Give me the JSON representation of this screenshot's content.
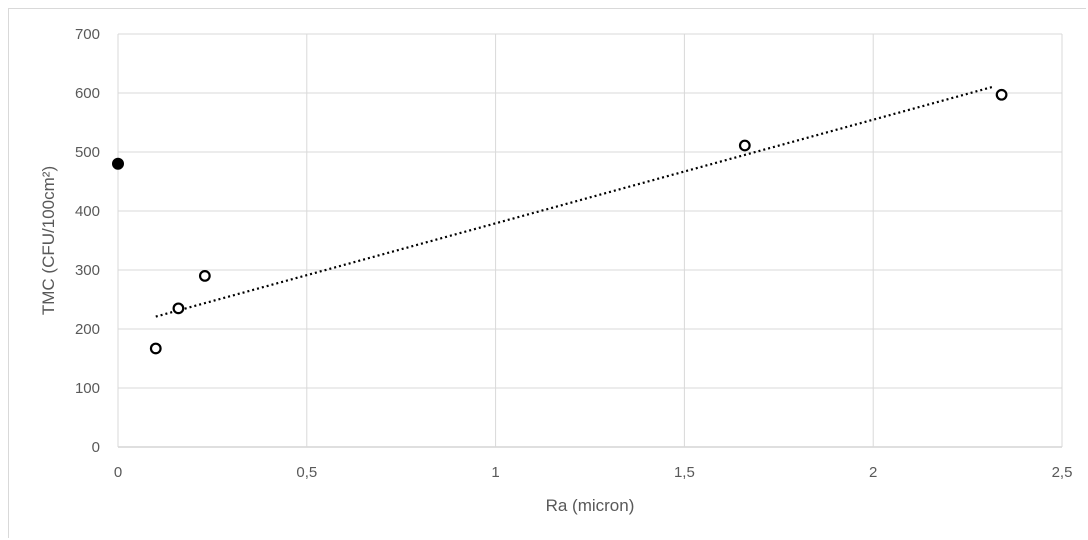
{
  "chart_data": {
    "type": "scatter",
    "xlabel": "Ra (micron)",
    "ylabel": "TMC (CFU/100cm²)",
    "xlim": [
      0,
      2.5
    ],
    "ylim": [
      0,
      700
    ],
    "x_ticks": [
      "0",
      "0,5",
      "1",
      "1,5",
      "2",
      "2,5"
    ],
    "x_tick_values": [
      0,
      0.5,
      1,
      1.5,
      2,
      2.5
    ],
    "y_ticks": [
      "0",
      "100",
      "200",
      "300",
      "400",
      "500",
      "600",
      "700"
    ],
    "y_tick_values": [
      0,
      100,
      200,
      300,
      400,
      500,
      600,
      700
    ],
    "grid": true,
    "legend": "none",
    "series": [
      {
        "marker": "filled-circle",
        "color": "#000000",
        "points": [
          [
            0,
            480
          ]
        ]
      },
      {
        "marker": "open-circle",
        "color": "#000000",
        "points": [
          [
            0.1,
            167
          ],
          [
            0.16,
            235
          ],
          [
            0.23,
            290
          ],
          [
            1.66,
            511
          ],
          [
            2.34,
            597
          ]
        ]
      }
    ],
    "trendline": {
      "style": "dotted",
      "color": "#000000",
      "points": [
        [
          0.1,
          221
        ],
        [
          2.32,
          611
        ]
      ]
    }
  }
}
